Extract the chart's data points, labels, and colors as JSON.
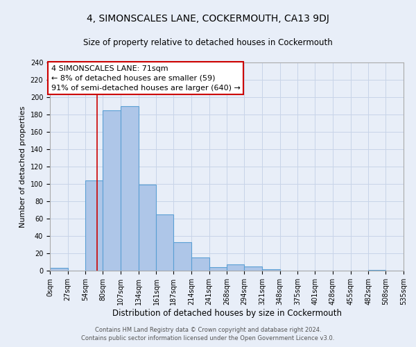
{
  "title": "4, SIMONSCALES LANE, COCKERMOUTH, CA13 9DJ",
  "subtitle": "Size of property relative to detached houses in Cockermouth",
  "xlabel": "Distribution of detached houses by size in Cockermouth",
  "ylabel": "Number of detached properties",
  "footer_line1": "Contains HM Land Registry data © Crown copyright and database right 2024.",
  "footer_line2": "Contains public sector information licensed under the Open Government Licence v3.0.",
  "bin_edges": [
    0,
    27,
    54,
    80,
    107,
    134,
    161,
    187,
    214,
    241,
    268,
    294,
    321,
    348,
    375,
    401,
    428,
    455,
    482,
    508,
    535
  ],
  "bin_labels": [
    "0sqm",
    "27sqm",
    "54sqm",
    "80sqm",
    "107sqm",
    "134sqm",
    "161sqm",
    "187sqm",
    "214sqm",
    "241sqm",
    "268sqm",
    "294sqm",
    "321sqm",
    "348sqm",
    "375sqm",
    "401sqm",
    "428sqm",
    "455sqm",
    "482sqm",
    "508sqm",
    "535sqm"
  ],
  "counts": [
    3,
    0,
    104,
    185,
    190,
    99,
    65,
    33,
    15,
    4,
    7,
    5,
    2,
    0,
    0,
    0,
    0,
    0,
    1,
    0
  ],
  "bar_color": "#aec6e8",
  "bar_edge_color": "#5a9fd4",
  "vline_x": 71,
  "vline_color": "#cc0000",
  "annotation_title": "4 SIMONSCALES LANE: 71sqm",
  "annotation_line1": "← 8% of detached houses are smaller (59)",
  "annotation_line2": "91% of semi-detached houses are larger (640) →",
  "annotation_box_color": "#ffffff",
  "annotation_box_edge_color": "#cc0000",
  "grid_color": "#c8d4e8",
  "background_color": "#e8eef8",
  "ylim": [
    0,
    240
  ],
  "yticks": [
    0,
    20,
    40,
    60,
    80,
    100,
    120,
    140,
    160,
    180,
    200,
    220,
    240
  ],
  "title_fontsize": 10,
  "subtitle_fontsize": 8.5,
  "ylabel_fontsize": 8,
  "xlabel_fontsize": 8.5,
  "tick_fontsize": 7,
  "footer_fontsize": 6,
  "annot_fontsize": 8
}
